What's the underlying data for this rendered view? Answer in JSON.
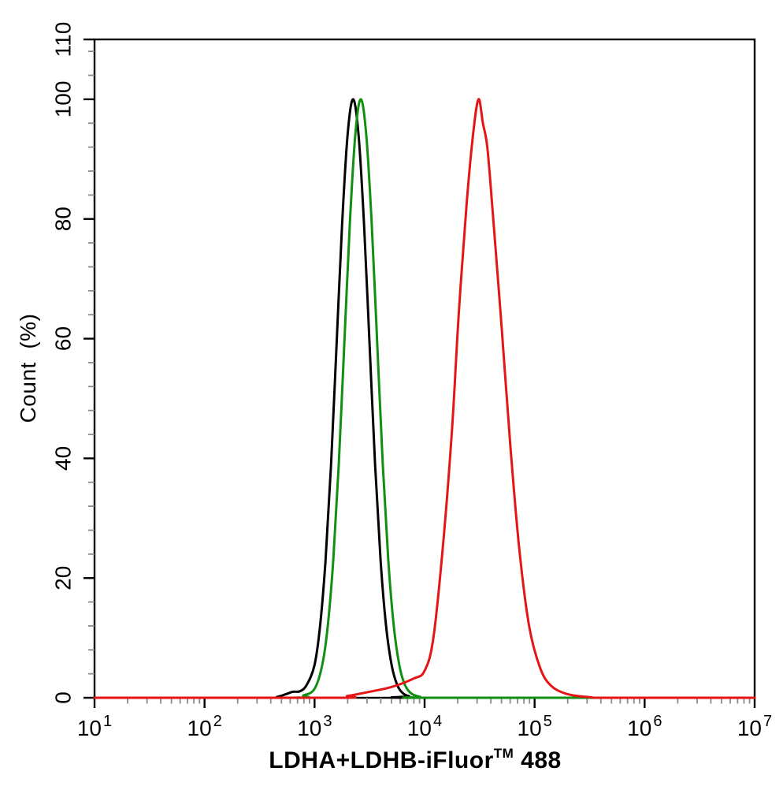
{
  "figure": {
    "background": "#ffffff",
    "frame_color": "#000000",
    "x_axis": {
      "title_main": "LDHA+LDHB-iFluor",
      "title_sup": "TM",
      "title_tail": " 488",
      "scale": "log10",
      "ticks": [
        {
          "base": "10",
          "exp": "1"
        },
        {
          "base": "10",
          "exp": "2"
        },
        {
          "base": "10",
          "exp": "3"
        },
        {
          "base": "10",
          "exp": "4"
        },
        {
          "base": "10",
          "exp": "5"
        },
        {
          "base": "10",
          "exp": "6"
        },
        {
          "base": "10",
          "exp": "7"
        }
      ],
      "minor_tick_multiples": [
        2,
        3,
        4,
        5,
        6,
        7,
        8,
        9
      ]
    },
    "y_axis": {
      "title": "Count  (%)",
      "tick_labels": [
        "0",
        "20",
        "40",
        "60",
        "80",
        "100",
        "110"
      ],
      "tick_values": [
        0,
        20,
        40,
        60,
        80,
        100,
        110
      ],
      "minor_tick_step": 4,
      "range": [
        0,
        110
      ]
    },
    "styles": {
      "major_tick_color": "#000000",
      "minor_tick_color": "#8c8c8c",
      "text_color": "#000000"
    }
  },
  "chart_data": {
    "type": "line",
    "title": "",
    "xlabel": "LDHA+LDHB-iFluor™ 488",
    "ylabel": "Count (%)",
    "x_scale": "log10",
    "xlim_log10": [
      1,
      7
    ],
    "ylim": [
      0,
      110
    ],
    "grid": false,
    "legend": "none",
    "series": [
      {
        "name": "black-curve",
        "color": "#000000",
        "peak": {
          "x_log10": 3.35,
          "x_value": 2200,
          "count_pct": 100
        },
        "points": [
          [
            1.0,
            0
          ],
          [
            2.55,
            0
          ],
          [
            2.66,
            0.15
          ],
          [
            2.74,
            0.6
          ],
          [
            2.8,
            1.0
          ],
          [
            2.87,
            1.1
          ],
          [
            2.93,
            2.2
          ],
          [
            3.0,
            5.5
          ],
          [
            3.05,
            12
          ],
          [
            3.1,
            23
          ],
          [
            3.15,
            39
          ],
          [
            3.2,
            59
          ],
          [
            3.25,
            79
          ],
          [
            3.3,
            94
          ],
          [
            3.35,
            100
          ],
          [
            3.4,
            94
          ],
          [
            3.45,
            79
          ],
          [
            3.5,
            59
          ],
          [
            3.55,
            39
          ],
          [
            3.6,
            23
          ],
          [
            3.65,
            12
          ],
          [
            3.7,
            5.5
          ],
          [
            3.75,
            2.2
          ],
          [
            3.8,
            0.8
          ],
          [
            3.86,
            0.25
          ],
          [
            3.95,
            0
          ],
          [
            7.0,
            0
          ]
        ]
      },
      {
        "name": "green-curve",
        "color": "#109010",
        "peak": {
          "x_log10": 3.42,
          "x_value": 2600,
          "count_pct": 100
        },
        "points": [
          [
            1.0,
            0
          ],
          [
            2.78,
            0
          ],
          [
            2.9,
            0.4
          ],
          [
            3.0,
            1.5
          ],
          [
            3.07,
            5.5
          ],
          [
            3.12,
            12
          ],
          [
            3.17,
            23
          ],
          [
            3.22,
            39
          ],
          [
            3.27,
            59
          ],
          [
            3.32,
            79
          ],
          [
            3.37,
            94
          ],
          [
            3.42,
            100
          ],
          [
            3.47,
            94
          ],
          [
            3.52,
            79
          ],
          [
            3.57,
            59
          ],
          [
            3.62,
            39
          ],
          [
            3.67,
            23
          ],
          [
            3.72,
            12
          ],
          [
            3.77,
            5.5
          ],
          [
            3.82,
            2.2
          ],
          [
            3.88,
            0.7
          ],
          [
            3.96,
            0.15
          ],
          [
            4.05,
            0
          ],
          [
            7.0,
            0
          ]
        ]
      },
      {
        "name": "red-curve",
        "color": "#e51515",
        "peak": {
          "x_log10": 4.49,
          "x_value": 31000,
          "count_pct": 100
        },
        "points": [
          [
            1.0,
            0
          ],
          [
            3.18,
            0
          ],
          [
            3.3,
            0.3
          ],
          [
            3.5,
            1.0
          ],
          [
            3.7,
            1.8
          ],
          [
            3.9,
            3.2
          ],
          [
            4.0,
            4.5
          ],
          [
            4.08,
            10
          ],
          [
            4.17,
            26
          ],
          [
            4.25,
            45
          ],
          [
            4.31,
            64
          ],
          [
            4.38,
            82
          ],
          [
            4.44,
            94
          ],
          [
            4.49,
            100
          ],
          [
            4.53,
            96
          ],
          [
            4.57,
            92
          ],
          [
            4.62,
            81
          ],
          [
            4.7,
            62
          ],
          [
            4.78,
            42
          ],
          [
            4.86,
            25
          ],
          [
            4.95,
            12
          ],
          [
            5.05,
            5
          ],
          [
            5.15,
            2
          ],
          [
            5.3,
            0.6
          ],
          [
            5.5,
            0.1
          ],
          [
            5.7,
            0
          ],
          [
            7.0,
            0
          ]
        ]
      }
    ]
  }
}
